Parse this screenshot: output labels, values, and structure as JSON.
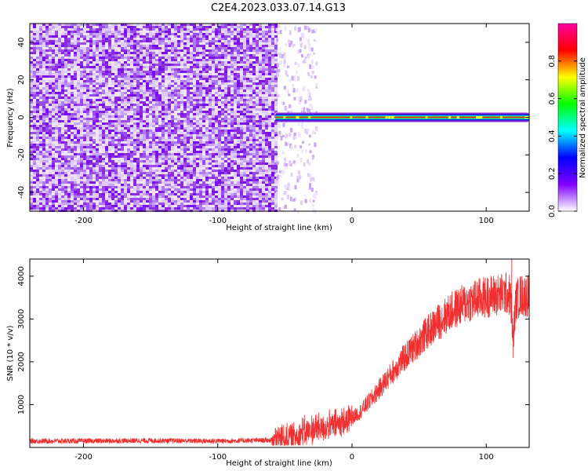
{
  "figure": {
    "title": "C2E4.2023.033.07.14.G13"
  },
  "chart_data": [
    {
      "type": "heatmap",
      "title": "",
      "xlabel": "Height of straight line (km)",
      "ylabel": "Frequency (Hz)",
      "xlim": [
        -240,
        132
      ],
      "ylim": [
        -50,
        50
      ],
      "x_ticks": [
        -200,
        -100,
        0,
        100
      ],
      "y_ticks": [
        -40,
        -20,
        0,
        20,
        40
      ],
      "noise_region_x": [
        -240,
        -57
      ],
      "sparse_noise_region_x": [
        -57,
        -27
      ],
      "signal_line": {
        "x_start": -57,
        "x_end": 132,
        "frequency": 0
      },
      "colorbar": {
        "label": "Normalized spectral amplitude",
        "range": [
          0.0,
          1.0
        ],
        "ticks": [
          0.0,
          0.2,
          0.4,
          0.6,
          0.8
        ],
        "colormap": [
          "#ffffff",
          "#8000ff",
          "#0000ff",
          "#00ffff",
          "#00ff00",
          "#ffff00",
          "#ff0000",
          "#ff00a0"
        ]
      },
      "grid": false
    },
    {
      "type": "line",
      "title": "",
      "xlabel": "Height of straight line (km)",
      "ylabel": "SNR (10 * v/v)",
      "xlim": [
        -240,
        132
      ],
      "ylim": [
        0,
        4400
      ],
      "x_ticks": [
        -200,
        -100,
        0,
        100
      ],
      "y_ticks": [
        1000,
        2000,
        3000,
        4000
      ],
      "color": "#f03030",
      "series": [
        {
          "x": [
            -240,
            -200,
            -150,
            -100,
            -60,
            -45,
            -35,
            -25,
            -15,
            -5,
            5,
            15,
            25,
            35,
            45,
            55,
            65,
            75,
            85,
            95,
            105,
            112,
            115,
            118,
            120,
            122,
            125,
            132
          ],
          "y": [
            150,
            150,
            160,
            150,
            170,
            250,
            350,
            450,
            500,
            600,
            800,
            1150,
            1550,
            1950,
            2300,
            2650,
            2950,
            3200,
            3380,
            3480,
            3550,
            3580,
            3600,
            3550,
            2500,
            3400,
            3550,
            3550
          ]
        }
      ],
      "spikes": [
        {
          "x": 119,
          "y": 4400
        },
        {
          "x": 120,
          "y": 2100
        }
      ],
      "grid": false
    }
  ]
}
